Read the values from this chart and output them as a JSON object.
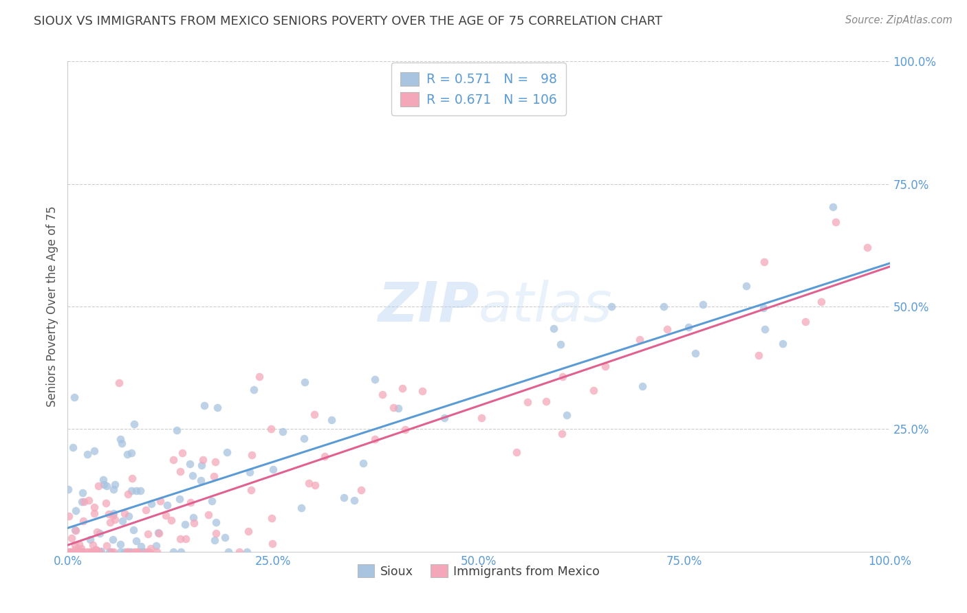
{
  "title": "SIOUX VS IMMIGRANTS FROM MEXICO SENIORS POVERTY OVER THE AGE OF 75 CORRELATION CHART",
  "source": "Source: ZipAtlas.com",
  "ylabel": "Seniors Poverty Over the Age of 75",
  "xlim": [
    0.0,
    1.0
  ],
  "ylim": [
    0.0,
    1.0
  ],
  "xticks": [
    0.0,
    0.25,
    0.5,
    0.75,
    1.0
  ],
  "xticklabels": [
    "0.0%",
    "25.0%",
    "50.0%",
    "75.0%",
    "100.0%"
  ],
  "yticks": [
    0.25,
    0.5,
    0.75,
    1.0
  ],
  "yticklabels": [
    "25.0%",
    "50.0%",
    "75.0%",
    "100.0%"
  ],
  "sioux_color": "#a8c4e0",
  "mexico_color": "#f4a7b9",
  "sioux_line_color": "#5b9bd5",
  "mexico_line_color": "#e06090",
  "R_sioux": 0.571,
  "N_sioux": 98,
  "R_mexico": 0.671,
  "N_mexico": 106,
  "background_color": "#ffffff",
  "grid_color": "#cccccc",
  "tick_label_color": "#5b9bd5",
  "title_color": "#404040",
  "sioux_seed": 7,
  "mexico_seed": 13,
  "reg_line_intercept_sioux": 0.01,
  "reg_line_slope_sioux": 0.6,
  "reg_line_intercept_mexico": 0.005,
  "reg_line_slope_mexico": 0.6
}
